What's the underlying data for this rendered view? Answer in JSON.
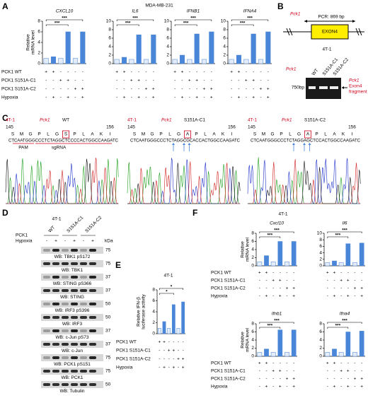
{
  "panels": {
    "A": {
      "label": "A",
      "title": "MDA-MB-231",
      "y_label": [
        "Relative",
        "mRNA level"
      ],
      "bar_colors": [
        "#e3ecf8",
        "#4a86d8"
      ],
      "rows": [
        {
          "label": "PCK1 WT",
          "marks": [
            "+",
            "+",
            "-",
            "-",
            "-",
            "-"
          ]
        },
        {
          "label": "PCK1 S151A-C1",
          "marks": [
            "-",
            "-",
            "+",
            "+",
            "-",
            "-"
          ]
        },
        {
          "label": "PCK1 S151A-C2",
          "marks": [
            "-",
            "-",
            "-",
            "-",
            "+",
            "+"
          ]
        },
        {
          "label": "Hypoxia",
          "marks": [
            "-",
            "+",
            "-",
            "+",
            "-",
            "+"
          ]
        }
      ],
      "charts": [
        {
          "type": "bar",
          "title": "CXCL10",
          "values": [
            1,
            1.3,
            1,
            6,
            1,
            6
          ],
          "ylim": [
            0,
            8
          ],
          "yticks": [
            0,
            2,
            4,
            6,
            8
          ],
          "significance": [
            "***",
            "***"
          ]
        },
        {
          "type": "bar",
          "title": "IL6",
          "values": [
            1,
            1.5,
            1,
            6.8,
            1,
            6.8
          ],
          "ylim": [
            0,
            10
          ],
          "yticks": [
            0,
            2,
            4,
            6,
            8,
            10
          ],
          "significance": [
            "***",
            "***"
          ]
        },
        {
          "type": "bar",
          "title": "IFNB1",
          "values": [
            1,
            2,
            1,
            7,
            1,
            7.5
          ],
          "ylim": [
            0,
            10
          ],
          "yticks": [
            0,
            2,
            4,
            6,
            8,
            10
          ],
          "significance": [
            "***",
            "***"
          ]
        },
        {
          "type": "bar",
          "title": "IFNA4",
          "values": [
            1,
            2,
            1,
            7,
            1,
            7.5
          ],
          "ylim": [
            0,
            10
          ],
          "yticks": [
            0,
            2,
            4,
            6,
            8,
            10
          ],
          "significance": [
            "***",
            "***"
          ]
        }
      ]
    },
    "B": {
      "label": "B",
      "gene": "Pck1",
      "pcr": "PCR: 869 bp",
      "exon": "EXON4",
      "cell": "4T-1",
      "gel_gene": "Pck1",
      "lanes": [
        "WT",
        "S151A-C1",
        "S151A-C2"
      ],
      "marker": "750bp",
      "product": [
        "Pck1",
        "Exon4",
        "fragment"
      ]
    },
    "C": {
      "label": "C",
      "panels": [
        {
          "cell": "4T-1",
          "gene": "Pck1",
          "clone": "WT",
          "start": 145,
          "end": 156,
          "residues": [
            "S",
            "M",
            "G",
            "P",
            "L",
            "G",
            "S",
            "P",
            "L",
            "A",
            "K",
            "I"
          ],
          "dna": "CTCAATGGGCCCTCTAGGCTCCCCACTGGCCAAGATC",
          "pam": "PAM",
          "sgrna": "sgRNA"
        },
        {
          "cell": "4T-1",
          "gene": "Pck1",
          "clone": "S151A-C1",
          "start": 145,
          "end": 156,
          "residues": [
            "S",
            "M",
            "G",
            "P",
            "L",
            "G",
            "A",
            "P",
            "L",
            "A",
            "K",
            "I"
          ],
          "dna": "CTCAATGGGCCCTCTAGGCGCACCACTGGCCAAGATC"
        },
        {
          "cell": "4T-1",
          "gene": "Pck1",
          "clone": "S151A-C2",
          "start": 145,
          "end": 156,
          "residues": [
            "S",
            "M",
            "G",
            "P",
            "L",
            "G",
            "A",
            "P",
            "L",
            "A",
            "K",
            "I"
          ],
          "dna": "CTCAATGGGCCCTCTAGGAGCTCCACTGGCCAAGATC"
        }
      ]
    },
    "D": {
      "label": "D",
      "title": "4T-1",
      "row_label": "PCK1",
      "groups": [
        "WT",
        "S151A-C1",
        "S151A-C2"
      ],
      "hypoxia_label": "Hypoxia",
      "hypoxia": [
        "-",
        "+",
        "-",
        "+",
        "-",
        "+"
      ],
      "unit": "kDa",
      "blots": [
        {
          "label": "WB: TBK1 pS172",
          "kda": 75
        },
        {
          "label": "WB: TBK1",
          "kda": 75
        },
        {
          "label": "WB: STING pS366",
          "kda": 37
        },
        {
          "label": "WB: STING",
          "kda": 37
        },
        {
          "label": "WB: IRF3 pS396",
          "kda": 50
        },
        {
          "label": "WB: IRF3",
          "kda": 50
        },
        {
          "label": "WB: c-Jun pS73",
          "kda": 37
        },
        {
          "label": "WB: c-Jun",
          "kda": 37
        },
        {
          "label": "WB: PCK1 pS151",
          "kda": 75
        },
        {
          "label": "WB: PCK1",
          "kda": 75
        },
        {
          "label": "WB: Tubulin",
          "kda": 50
        }
      ]
    },
    "E": {
      "label": "E",
      "title": "4T-1",
      "y_label": [
        "Relative IFN-β",
        "luciferase activity"
      ],
      "bar_colors": [
        "#e3ecf8",
        "#4a86d8"
      ],
      "rows": [
        {
          "label": "PCK1 WT",
          "marks": [
            "+",
            "+",
            "-",
            "-",
            "-",
            "-"
          ]
        },
        {
          "label": "PCK1 S151A-C1",
          "marks": [
            "-",
            "-",
            "+",
            "+",
            "-",
            "-"
          ]
        },
        {
          "label": "PCK1 S151A-C2",
          "marks": [
            "-",
            "-",
            "-",
            "-",
            "+",
            "+"
          ]
        },
        {
          "label": "Hypoxia",
          "marks": [
            "-",
            "+",
            "-",
            "+",
            "-",
            "+"
          ]
        }
      ],
      "charts": [
        {
          "type": "bar",
          "values": [
            1,
            2.2,
            1,
            5.3,
            1,
            5.8
          ],
          "ylim": [
            0,
            8
          ],
          "yticks": [
            0,
            2,
            4,
            6,
            8
          ],
          "significance": [
            "*",
            "*"
          ]
        }
      ]
    },
    "F": {
      "label": "F",
      "title": "4T-1",
      "y_label": [
        "Relative",
        "mRNA level"
      ],
      "bar_colors": [
        "#e3ecf8",
        "#4a86d8"
      ],
      "rows": [
        {
          "label": "PCK1 WT",
          "marks": [
            "+",
            "+",
            "-",
            "-",
            "-",
            "-"
          ]
        },
        {
          "label": "PCK1 S151A-C1",
          "marks": [
            "-",
            "-",
            "+",
            "+",
            "-",
            "-"
          ]
        },
        {
          "label": "PCK1 S151A-C2",
          "marks": [
            "-",
            "-",
            "-",
            "-",
            "+",
            "+"
          ]
        },
        {
          "label": "Hypoxia",
          "marks": [
            "-",
            "+",
            "-",
            "+",
            "-",
            "+"
          ]
        }
      ],
      "charts": [
        {
          "type": "bar",
          "title": "Cxcl10",
          "values": [
            1,
            2.5,
            1,
            6,
            1,
            6
          ],
          "ylim": [
            0,
            8
          ],
          "yticks": [
            0,
            2,
            4,
            6,
            8
          ],
          "significance": [
            "***",
            "***"
          ]
        },
        {
          "type": "bar",
          "title": "Il6",
          "values": [
            1,
            1.5,
            1,
            6.8,
            1,
            7
          ],
          "ylim": [
            0,
            10
          ],
          "yticks": [
            0,
            2,
            4,
            6,
            8,
            10
          ],
          "significance": [
            "***",
            "***"
          ]
        },
        {
          "type": "bar",
          "title": "Ifnb1",
          "values": [
            1,
            1.8,
            1,
            6.5,
            1,
            6.5
          ],
          "ylim": [
            0,
            8
          ],
          "yticks": [
            0,
            2,
            4,
            6,
            8
          ],
          "significance": [
            "***",
            "***"
          ]
        },
        {
          "type": "bar",
          "title": "Ifna4",
          "values": [
            1,
            1.8,
            1,
            6,
            1,
            6.2
          ],
          "ylim": [
            0,
            8
          ],
          "yticks": [
            0,
            2,
            4,
            6,
            8
          ],
          "significance": [
            "***",
            "***"
          ]
        }
      ]
    }
  }
}
